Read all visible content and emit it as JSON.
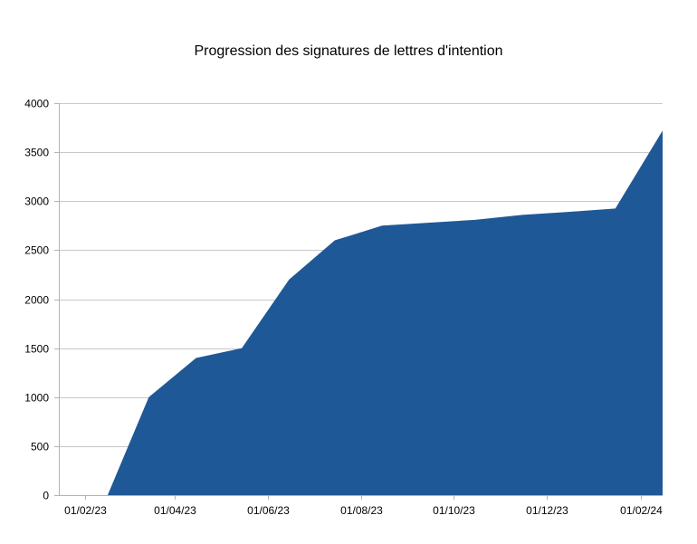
{
  "colors": {
    "area_fill": "#1f5896",
    "gridline": "#c8c8c8",
    "axis": "#b3b3b3",
    "text": "#000000",
    "background": "#ffffff"
  },
  "chart_data": {
    "type": "area",
    "title": "Progression des signatures de lettres d'intention",
    "xlabel": "",
    "ylabel": "",
    "grid": "horizontal",
    "legend": "none",
    "ylim": [
      0,
      4000
    ],
    "y_ticks": [
      "0",
      "500",
      "1000",
      "1500",
      "2000",
      "2500",
      "3000",
      "3500",
      "4000"
    ],
    "x_axis": {
      "type": "date",
      "range": [
        "2023-01-15",
        "2024-02-15"
      ],
      "tick_dates": [
        "2023-02-01",
        "2023-04-01",
        "2023-06-01",
        "2023-08-01",
        "2023-10-01",
        "2023-12-01",
        "2024-02-01"
      ],
      "tick_labels": [
        "01/02/23",
        "01/04/23",
        "01/06/23",
        "01/08/23",
        "01/10/23",
        "01/12/23",
        "01/02/24"
      ]
    },
    "series": [
      {
        "x": [
          "2023-02-16",
          "2023-03-15",
          "2023-04-15",
          "2023-05-15",
          "2023-06-15",
          "2023-07-15",
          "2023-08-15",
          "2023-09-15",
          "2023-10-15",
          "2023-11-15",
          "2023-12-15",
          "2024-01-15",
          "2024-02-15"
        ],
        "y": [
          0,
          1000,
          1400,
          1500,
          2200,
          2600,
          2750,
          2780,
          2810,
          2860,
          2890,
          2925,
          3720
        ]
      }
    ]
  }
}
